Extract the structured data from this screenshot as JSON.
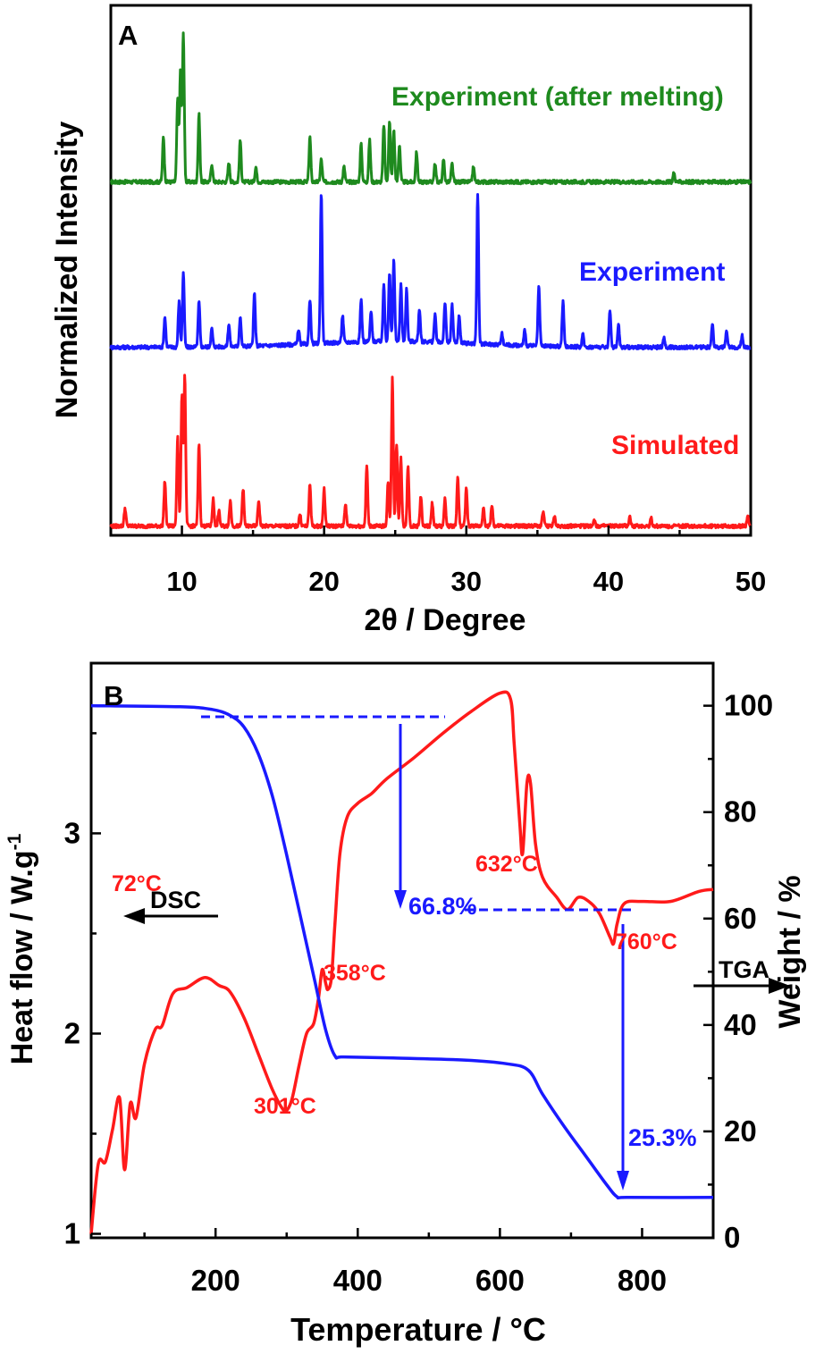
{
  "chart_data": [
    {
      "panel": "A",
      "type": "line",
      "xlabel": "2θ / Degree",
      "ylabel": "Normalized Intensity",
      "xlim": [
        5,
        50
      ],
      "xticks": [
        10,
        20,
        30,
        40,
        50
      ],
      "yticks": [],
      "legend": "inline labels",
      "series": [
        {
          "name": "Experiment (after melting)",
          "color": "#1e8a1e",
          "offset": 2.0,
          "baseline": 0.05,
          "peaks": [
            [
              8.7,
              0.3
            ],
            [
              9.7,
              0.55
            ],
            [
              9.9,
              0.75
            ],
            [
              10.1,
              1.0
            ],
            [
              11.2,
              0.45
            ],
            [
              12.1,
              0.12
            ],
            [
              13.3,
              0.13
            ],
            [
              14.1,
              0.28
            ],
            [
              15.2,
              0.1
            ],
            [
              19.0,
              0.3
            ],
            [
              19.8,
              0.15
            ],
            [
              21.4,
              0.1
            ],
            [
              22.6,
              0.25
            ],
            [
              23.2,
              0.28
            ],
            [
              24.2,
              0.38
            ],
            [
              24.6,
              0.4
            ],
            [
              24.9,
              0.35
            ],
            [
              25.3,
              0.25
            ],
            [
              26.5,
              0.2
            ],
            [
              27.8,
              0.12
            ],
            [
              28.4,
              0.15
            ],
            [
              29.0,
              0.12
            ],
            [
              30.5,
              0.1
            ],
            [
              44.6,
              0.06
            ]
          ]
        },
        {
          "name": "Experiment",
          "color": "#1a1aff",
          "offset": 1.0,
          "baseline": 0.08,
          "peaks": [
            [
              8.8,
              0.2
            ],
            [
              9.8,
              0.3
            ],
            [
              10.1,
              0.5
            ],
            [
              11.2,
              0.3
            ],
            [
              12.1,
              0.12
            ],
            [
              13.3,
              0.15
            ],
            [
              14.1,
              0.2
            ],
            [
              15.1,
              0.35
            ],
            [
              18.2,
              0.1
            ],
            [
              19.0,
              0.3
            ],
            [
              19.8,
              1.0
            ],
            [
              21.3,
              0.18
            ],
            [
              22.6,
              0.28
            ],
            [
              23.3,
              0.2
            ],
            [
              24.2,
              0.38
            ],
            [
              24.6,
              0.45
            ],
            [
              24.9,
              0.55
            ],
            [
              25.4,
              0.38
            ],
            [
              25.8,
              0.35
            ],
            [
              26.7,
              0.22
            ],
            [
              27.8,
              0.18
            ],
            [
              28.5,
              0.27
            ],
            [
              29.0,
              0.25
            ],
            [
              29.5,
              0.18
            ],
            [
              30.8,
              1.0
            ],
            [
              32.5,
              0.08
            ],
            [
              34.1,
              0.1
            ],
            [
              35.1,
              0.4
            ],
            [
              36.8,
              0.3
            ],
            [
              38.2,
              0.08
            ],
            [
              40.1,
              0.25
            ],
            [
              40.7,
              0.15
            ],
            [
              43.9,
              0.06
            ],
            [
              47.3,
              0.16
            ],
            [
              48.3,
              0.1
            ],
            [
              49.4,
              0.08
            ]
          ]
        },
        {
          "name": "Simulated",
          "color": "#ff1a1a",
          "offset": 0.0,
          "baseline": 0.02,
          "peaks": [
            [
              6.0,
              0.12
            ],
            [
              8.8,
              0.3
            ],
            [
              9.7,
              0.6
            ],
            [
              10.0,
              0.88
            ],
            [
              10.2,
              1.0
            ],
            [
              11.2,
              0.55
            ],
            [
              12.2,
              0.18
            ],
            [
              12.6,
              0.1
            ],
            [
              13.4,
              0.17
            ],
            [
              14.3,
              0.25
            ],
            [
              15.4,
              0.17
            ],
            [
              18.3,
              0.08
            ],
            [
              19.0,
              0.28
            ],
            [
              20.0,
              0.25
            ],
            [
              21.5,
              0.15
            ],
            [
              23.0,
              0.4
            ],
            [
              24.5,
              0.3
            ],
            [
              24.8,
              0.98
            ],
            [
              25.1,
              0.55
            ],
            [
              25.4,
              0.45
            ],
            [
              25.9,
              0.4
            ],
            [
              26.8,
              0.2
            ],
            [
              27.6,
              0.15
            ],
            [
              28.5,
              0.18
            ],
            [
              29.4,
              0.33
            ],
            [
              30.0,
              0.25
            ],
            [
              31.2,
              0.12
            ],
            [
              31.8,
              0.14
            ],
            [
              35.4,
              0.1
            ],
            [
              36.2,
              0.06
            ],
            [
              39.0,
              0.05
            ],
            [
              41.5,
              0.06
            ],
            [
              43.0,
              0.05
            ],
            [
              49.8,
              0.06
            ]
          ]
        }
      ],
      "annotations": {
        "panel_letter": "A",
        "label_after_melting": "Experiment (after melting)",
        "label_experiment": "Experiment",
        "label_simulated": "Simulated"
      }
    },
    {
      "panel": "B",
      "type": "line",
      "xlabel": "Temperature / °C",
      "ylabel_left": "Heat flow / W.g",
      "ylabel_left_superscript": "-1",
      "ylabel_right": "Weight / %",
      "xlim": [
        25,
        900
      ],
      "xticks": [
        200,
        400,
        600,
        800
      ],
      "ylim_left": [
        0.98,
        3.85
      ],
      "yticks_left": [
        1,
        2,
        3
      ],
      "ylim_right": [
        0,
        108
      ],
      "yticks_right": [
        0,
        20,
        40,
        60,
        80,
        100
      ],
      "series": [
        {
          "name": "DSC",
          "axis": "left",
          "color": "#ff1a1a",
          "points": [
            [
              25,
              1.0
            ],
            [
              35,
              1.35
            ],
            [
              45,
              1.36
            ],
            [
              55,
              1.52
            ],
            [
              65,
              1.68
            ],
            [
              72,
              1.32
            ],
            [
              80,
              1.65
            ],
            [
              88,
              1.58
            ],
            [
              100,
              1.85
            ],
            [
              115,
              2.02
            ],
            [
              125,
              2.04
            ],
            [
              140,
              2.2
            ],
            [
              160,
              2.23
            ],
            [
              185,
              2.28
            ],
            [
              205,
              2.24
            ],
            [
              220,
              2.21
            ],
            [
              240,
              2.08
            ],
            [
              260,
              1.9
            ],
            [
              280,
              1.72
            ],
            [
              295,
              1.62
            ],
            [
              301,
              1.62
            ],
            [
              308,
              1.68
            ],
            [
              318,
              1.85
            ],
            [
              328,
              2.0
            ],
            [
              338,
              2.05
            ],
            [
              345,
              2.18
            ],
            [
              350,
              2.32
            ],
            [
              355,
              2.25
            ],
            [
              358,
              2.22
            ],
            [
              363,
              2.28
            ],
            [
              368,
              2.55
            ],
            [
              375,
              2.9
            ],
            [
              385,
              3.08
            ],
            [
              400,
              3.15
            ],
            [
              420,
              3.2
            ],
            [
              440,
              3.27
            ],
            [
              480,
              3.38
            ],
            [
              520,
              3.5
            ],
            [
              560,
              3.61
            ],
            [
              600,
              3.7
            ],
            [
              615,
              3.67
            ],
            [
              620,
              3.45
            ],
            [
              628,
              3.05
            ],
            [
              632,
              2.9
            ],
            [
              638,
              3.25
            ],
            [
              643,
              3.25
            ],
            [
              650,
              2.95
            ],
            [
              660,
              2.78
            ],
            [
              680,
              2.68
            ],
            [
              695,
              2.62
            ],
            [
              710,
              2.68
            ],
            [
              725,
              2.66
            ],
            [
              740,
              2.6
            ],
            [
              755,
              2.48
            ],
            [
              760,
              2.45
            ],
            [
              765,
              2.55
            ],
            [
              775,
              2.65
            ],
            [
              800,
              2.66
            ],
            [
              840,
              2.66
            ],
            [
              880,
              2.71
            ],
            [
              900,
              2.72
            ]
          ]
        },
        {
          "name": "TGA",
          "axis": "right",
          "color": "#1a1aff",
          "points": [
            [
              25,
              100
            ],
            [
              150,
              99.8
            ],
            [
              195,
              99.3
            ],
            [
              220,
              98.2
            ],
            [
              240,
              96
            ],
            [
              260,
              91
            ],
            [
              280,
              83
            ],
            [
              300,
              72
            ],
            [
              320,
              60
            ],
            [
              340,
              48
            ],
            [
              355,
              39
            ],
            [
              368,
              34.2
            ],
            [
              380,
              34
            ],
            [
              450,
              33.8
            ],
            [
              550,
              33.4
            ],
            [
              610,
              32.7
            ],
            [
              640,
              31.5
            ],
            [
              660,
              27
            ],
            [
              690,
              21
            ],
            [
              720,
              15.5
            ],
            [
              750,
              10
            ],
            [
              765,
              7.7
            ],
            [
              780,
              7.6
            ],
            [
              900,
              7.6
            ]
          ]
        }
      ],
      "annotations": {
        "panel_letter": "B",
        "dsc_label": "DSC",
        "tga_label": "TGA",
        "peak_72": "72°C",
        "peak_301": "301°C",
        "peak_358": "358°C",
        "peak_632": "632°C",
        "peak_760": "760°C",
        "loss_1": "66.8%",
        "loss_2": "25.3%"
      }
    }
  ]
}
